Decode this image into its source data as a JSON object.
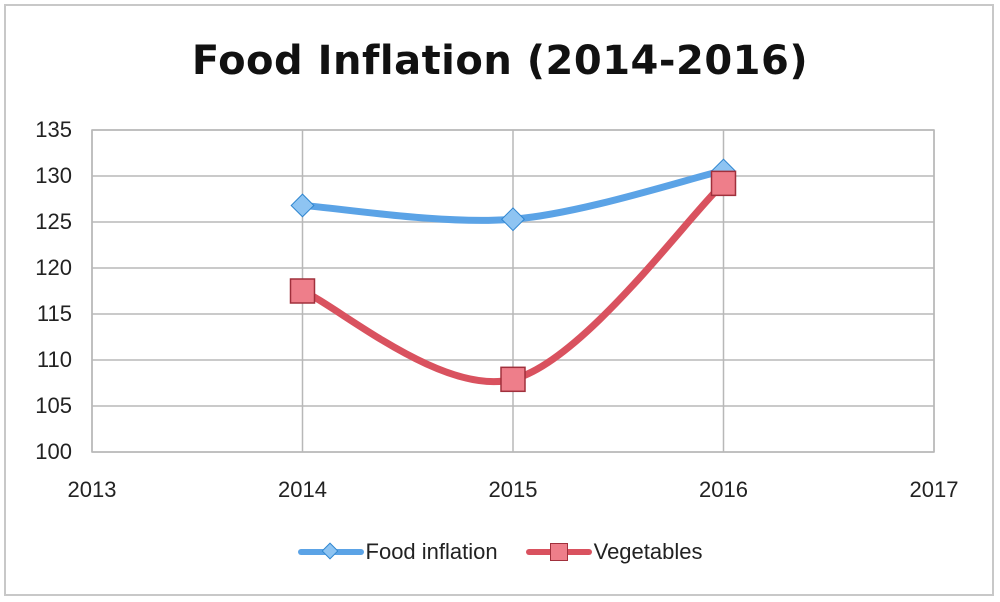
{
  "chart_data": {
    "type": "line",
    "title": "Food Inflation (2014-2016)",
    "xlabel": "",
    "ylabel": "",
    "xlim": [
      2013,
      2017
    ],
    "ylim": [
      100,
      135
    ],
    "x_ticks": [
      "2013",
      "2014",
      "2015",
      "2016",
      "2017"
    ],
    "y_ticks": [
      "100",
      "105",
      "110",
      "115",
      "120",
      "125",
      "130",
      "135"
    ],
    "grid": true,
    "legend_position": "bottom",
    "series": [
      {
        "name": "Food inflation",
        "color": "#5ba3e6",
        "marker": "diamond",
        "x": [
          2014,
          2015,
          2016
        ],
        "values": [
          126.8,
          125.3,
          130.6
        ]
      },
      {
        "name": "Vegetables",
        "color": "#d9525f",
        "marker": "square",
        "x": [
          2014,
          2015,
          2016
        ],
        "values": [
          117.5,
          107.9,
          129.2
        ]
      }
    ]
  }
}
